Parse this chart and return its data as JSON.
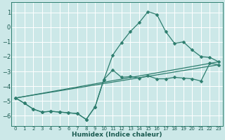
{
  "xlabel": "Humidex (Indice chaleur)",
  "bg_color": "#cce8e8",
  "grid_color": "#ffffff",
  "line_color": "#2d7d6e",
  "xlim": [
    -0.5,
    23.5
  ],
  "ylim": [
    -6.7,
    1.7
  ],
  "xticks": [
    0,
    1,
    2,
    3,
    4,
    5,
    6,
    7,
    8,
    9,
    10,
    11,
    12,
    13,
    14,
    15,
    16,
    17,
    18,
    19,
    20,
    21,
    22,
    23
  ],
  "yticks": [
    -6,
    -5,
    -4,
    -3,
    -2,
    -1,
    0,
    1
  ],
  "line1_x": [
    0,
    1,
    2,
    3,
    4,
    5,
    6,
    7,
    8,
    9,
    10,
    11,
    12,
    13,
    14,
    15,
    16,
    17,
    18,
    19,
    20,
    21,
    22,
    23
  ],
  "line1_y": [
    -4.8,
    -5.15,
    -5.55,
    -5.75,
    -5.7,
    -5.75,
    -5.8,
    -5.85,
    -6.25,
    -5.4,
    -3.55,
    -1.9,
    -1.05,
    -0.3,
    0.3,
    1.05,
    0.85,
    -0.3,
    -1.1,
    -1.0,
    -1.55,
    -2.0,
    -2.05,
    -2.35
  ],
  "line2_x": [
    0,
    1,
    2,
    3,
    4,
    5,
    6,
    7,
    8,
    9,
    10,
    11,
    12,
    13,
    14,
    15,
    16,
    17,
    18,
    19,
    20,
    21,
    22,
    23
  ],
  "line2_y": [
    -4.8,
    -5.15,
    -5.55,
    -5.75,
    -5.7,
    -5.75,
    -5.8,
    -5.85,
    -6.25,
    -5.4,
    -3.55,
    -2.9,
    -3.4,
    -3.35,
    -3.45,
    -3.3,
    -3.5,
    -3.5,
    -3.4,
    -3.45,
    -3.5,
    -3.65,
    -2.45,
    -2.55
  ],
  "line3_x": [
    0,
    23
  ],
  "line3_y": [
    -4.8,
    -2.35
  ],
  "line4_x": [
    0,
    23
  ],
  "line4_y": [
    -4.8,
    -2.55
  ],
  "marker": "D",
  "markersize": 2.5,
  "linewidth": 0.9
}
